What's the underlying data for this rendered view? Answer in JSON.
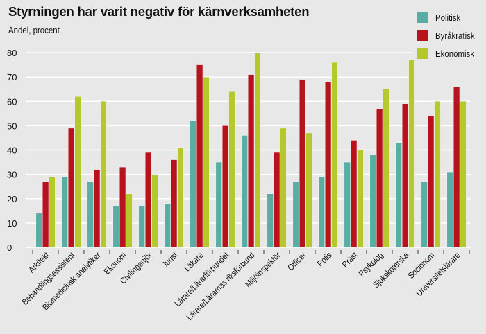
{
  "chart_data": {
    "type": "bar",
    "title": "Styrningen har varit negativ för kärnverksamheten",
    "subtitle": "Andel, procent",
    "xlabel": "",
    "ylabel": "Andel, procent",
    "ylim": [
      0,
      80
    ],
    "yticks": [
      0,
      10,
      20,
      30,
      40,
      50,
      60,
      70,
      80
    ],
    "grid": true,
    "legend_position": "top-right",
    "categories": [
      "Arkitekt",
      "Behandlingsassistent",
      "Biomedicinsk analytiker",
      "Ekonom",
      "Civilingenjör",
      "Jurist",
      "Läkare",
      "Lärare/Lärarförbundet",
      "Lärare/Lärarnas riksförbund",
      "Miljöinspektör",
      "Officer",
      "Polis",
      "Präst",
      "Psykolog",
      "Sjuksköterska",
      "Socionom",
      "Universitetslärare"
    ],
    "series": [
      {
        "name": "Politisk",
        "color": "#5aada3",
        "values": [
          14,
          29,
          27,
          17,
          17,
          18,
          52,
          35,
          46,
          22,
          27,
          29,
          35,
          38,
          43,
          27,
          31
        ]
      },
      {
        "name": "Byråkratisk",
        "color": "#b8121c",
        "values": [
          27,
          49,
          32,
          33,
          39,
          36,
          75,
          50,
          71,
          39,
          69,
          68,
          44,
          57,
          59,
          54,
          66
        ]
      },
      {
        "name": "Ekonomisk",
        "color": "#b5c92c",
        "values": [
          29,
          62,
          60,
          22,
          30,
          41,
          70,
          64,
          80,
          49,
          47,
          76,
          40,
          65,
          77,
          60,
          60
        ]
      }
    ]
  }
}
